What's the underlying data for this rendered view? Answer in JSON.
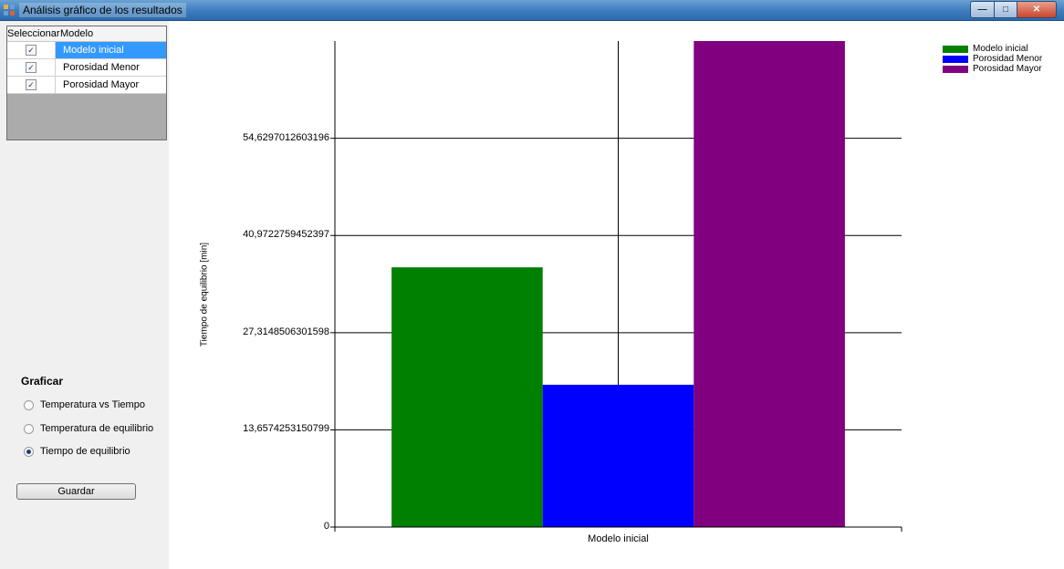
{
  "window": {
    "title": "Análisis gráfico de los resultados",
    "controls": {
      "minimize": "—",
      "maximize": "□",
      "close": "✕"
    }
  },
  "grid": {
    "headers": {
      "select": "Seleccionar",
      "model": "Modelo"
    },
    "rows": [
      {
        "checked": true,
        "model": "Modelo inicial",
        "selected": true
      },
      {
        "checked": true,
        "model": "Porosidad Menor",
        "selected": false
      },
      {
        "checked": true,
        "model": "Porosidad Mayor",
        "selected": false
      }
    ],
    "check_glyph": "✓"
  },
  "graficar": {
    "title": "Graficar",
    "options": [
      {
        "label": "Temperatura vs Tiempo",
        "selected": false
      },
      {
        "label": "Temperatura de equilibrio",
        "selected": false
      },
      {
        "label": "Tiempo de equilibrio",
        "selected": true
      }
    ]
  },
  "buttons": {
    "save": "Guardar"
  },
  "chart_data": {
    "type": "bar",
    "categories": [
      "Modelo inicial"
    ],
    "series": [
      {
        "name": "Modelo inicial",
        "color": "#008000",
        "values": [
          36.5
        ]
      },
      {
        "name": "Porosidad Menor",
        "color": "#0000ff",
        "values": [
          20.0
        ]
      },
      {
        "name": "Porosidad Mayor",
        "color": "#800080",
        "values": [
          68.3
        ]
      }
    ],
    "ylabel": "Tiempo de equilibrio [min]",
    "xlabel": "",
    "yticks": [
      0,
      13.6574253150799,
      27.3148506301598,
      40.9722759452397,
      54.6297012603196
    ],
    "ytick_labels": [
      "0",
      "13,6574253150799",
      "27,3148506301598",
      "40,9722759452397",
      "54,6297012603196"
    ],
    "ylim": [
      0,
      68.3
    ],
    "grid": true,
    "legend_position": "top-right"
  }
}
